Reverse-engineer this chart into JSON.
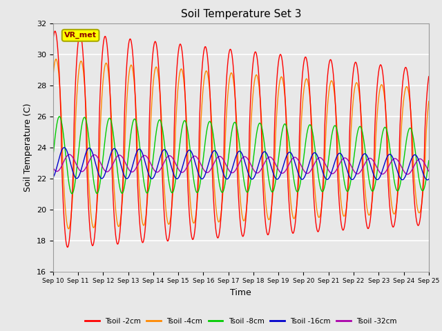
{
  "title": "Soil Temperature Set 3",
  "xlabel": "Time",
  "ylabel": "Soil Temperature (C)",
  "ylim": [
    16,
    32
  ],
  "xlim": [
    0,
    15
  ],
  "xtick_labels": [
    "Sep 10",
    "Sep 11",
    "Sep 12",
    "Sep 13",
    "Sep 14",
    "Sep 15",
    "Sep 16",
    "Sep 17",
    "Sep 18",
    "Sep 19",
    "Sep 20",
    "Sep 21",
    "Sep 22",
    "Sep 23",
    "Sep 24",
    "Sep 25"
  ],
  "series_colors": [
    "#ff0000",
    "#ff8800",
    "#00cc00",
    "#0000cc",
    "#aa00aa"
  ],
  "series_labels": [
    "Tsoil -2cm",
    "Tsoil -4cm",
    "Tsoil -8cm",
    "Tsoil -16cm",
    "Tsoil -32cm"
  ],
  "background_color": "#e8e8e8",
  "fig_background_color": "#e8e8e8",
  "grid_color": "#ffffff",
  "annotation_text": "VR_met",
  "annotation_box_color": "#ffff00",
  "annotation_box_edge": "#aaaa00"
}
